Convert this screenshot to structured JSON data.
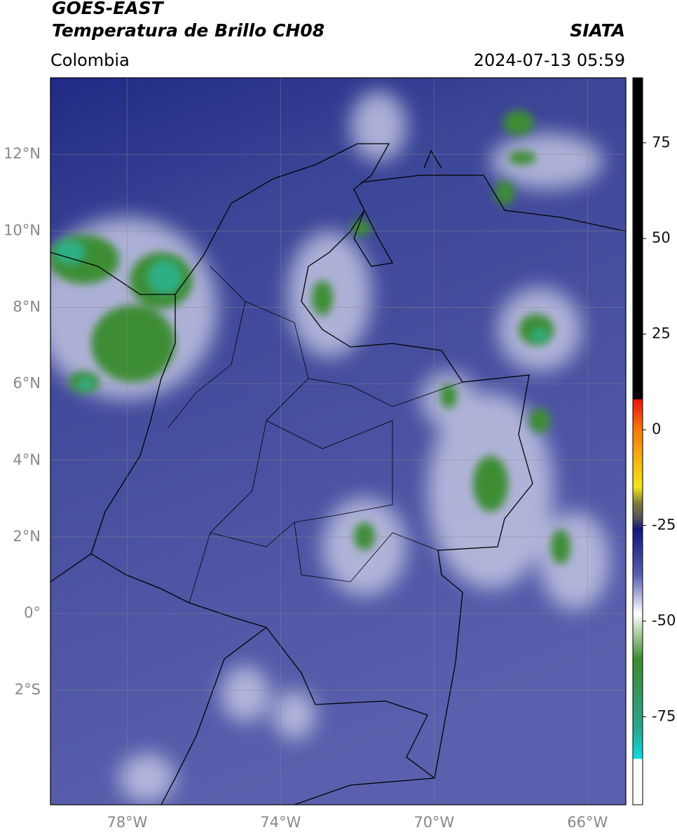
{
  "header": {
    "title": "GOES-EAST",
    "subtitle": "Temperatura de Brillo CH08",
    "source": "SIATA",
    "region": "Colombia",
    "datetime": "2024-07-13 05:59"
  },
  "map": {
    "xlim": [
      -80,
      -65
    ],
    "ylim": [
      -5,
      14
    ],
    "grid": true,
    "xticks": [
      {
        "value": -78,
        "label": "78°W"
      },
      {
        "value": -74,
        "label": "74°W"
      },
      {
        "value": -70,
        "label": "70°W"
      },
      {
        "value": -66,
        "label": "66°W"
      }
    ],
    "yticks": [
      {
        "value": 12,
        "label": "12°N"
      },
      {
        "value": 10,
        "label": "10°N"
      },
      {
        "value": 8,
        "label": "8°N"
      },
      {
        "value": 6,
        "label": "6°N"
      },
      {
        "value": 4,
        "label": "4°N"
      },
      {
        "value": 2,
        "label": "2°N"
      },
      {
        "value": 0,
        "label": "0°"
      },
      {
        "value": -2,
        "label": "2°S"
      }
    ]
  },
  "colorbar": {
    "lim": [
      -98,
      92
    ],
    "ticks": [
      75,
      50,
      25,
      0,
      -25,
      -50,
      -75
    ]
  }
}
